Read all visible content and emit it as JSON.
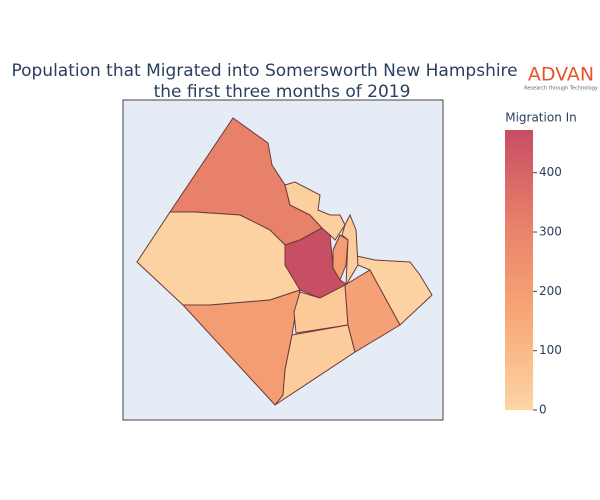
{
  "chart_data": {
    "type": "choropleth",
    "title": [
      "Population that Migrated into Somersworth New Hampshire in",
      "the first three months of 2019"
    ],
    "logo": "ADVAN",
    "logo_tagline": "Research through Technology",
    "colorbar_title": "Migration In",
    "values": [
      310,
      10,
      470,
      200,
      40,
      30,
      185,
      10,
      20,
      200,
      30
    ],
    "zlim": [
      0,
      472
    ],
    "zticks": [
      0,
      100,
      200,
      300,
      400
    ],
    "colorscale": [
      "#fdd5a5",
      "#f8a877",
      "#e8806a",
      "#c84d63"
    ],
    "border_color": "#6b3a3a",
    "background": "#e5ecf6"
  }
}
